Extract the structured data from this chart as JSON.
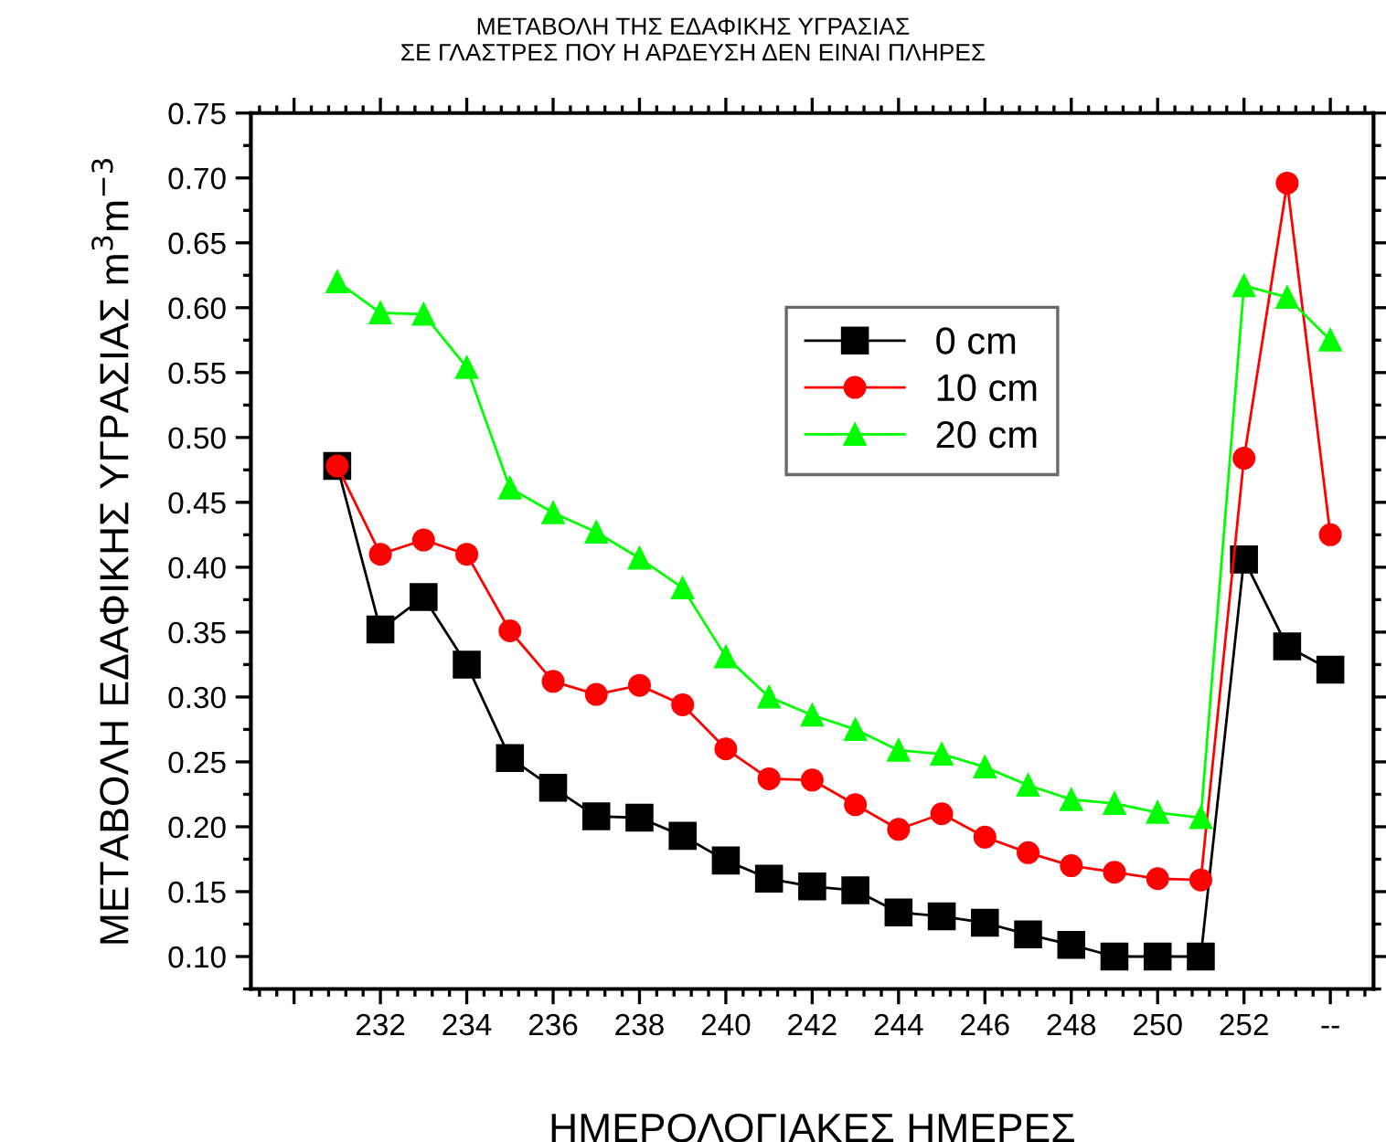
{
  "chart_data": {
    "type": "line",
    "title": "ΜΕΤΑΒΟΛΗ ΤΗΣ ΕΔΑΦΙΚΗΣ ΥΓΡΑΣΙΑΣ\nΣΕ ΓΛΑΣΤΡΕΣ ΠΟΥ Η ΑΡΔΕΥΣΗ ΔΕΝ ΕΙΝΑΙ ΠΛΗΡΕΣ",
    "xlabel": "ΗΜΕΡΟΛΟΓΙΑΚΕΣ ΗΜΕΡΕΣ",
    "ylabel": "ΜΕΤΑΒΟΛΗ ΕΔΑΦΙΚΗΣ ΥΓΡΑΣΙΑΣ m$^{3}$m$^{−3}$",
    "x": [
      231,
      232,
      233,
      234,
      235,
      236,
      237,
      238,
      239,
      240,
      241,
      242,
      243,
      244,
      245,
      246,
      247,
      248,
      249,
      250,
      251,
      252,
      253,
      254
    ],
    "series": [
      {
        "name": "0 cm",
        "color": "#000000",
        "marker": "square",
        "values": [
          0.478,
          0.352,
          0.377,
          0.325,
          0.253,
          0.23,
          0.208,
          0.207,
          0.193,
          0.174,
          0.16,
          0.154,
          0.151,
          0.134,
          0.131,
          0.126,
          0.117,
          0.109,
          0.1,
          0.1,
          0.1,
          0.406,
          0.339,
          0.321
        ]
      },
      {
        "name": "10 cm",
        "color": "#ff0000",
        "marker": "circle",
        "values": [
          0.478,
          0.41,
          0.421,
          0.41,
          0.351,
          0.312,
          0.302,
          0.309,
          0.294,
          0.26,
          0.237,
          0.236,
          0.217,
          0.198,
          0.21,
          0.192,
          0.18,
          0.17,
          0.165,
          0.16,
          0.159,
          0.484,
          0.696,
          0.425
        ]
      },
      {
        "name": "20 cm",
        "color": "#00ff00",
        "marker": "triangle",
        "values": [
          0.62,
          0.596,
          0.595,
          0.554,
          0.461,
          0.442,
          0.427,
          0.407,
          0.384,
          0.331,
          0.3,
          0.286,
          0.275,
          0.259,
          0.256,
          0.246,
          0.232,
          0.221,
          0.218,
          0.211,
          0.207,
          0.617,
          0.608,
          0.575
        ]
      }
    ],
    "xlim": [
      229,
      255
    ],
    "xticks": [
      {
        "value": 230,
        "label": null
      },
      232,
      234,
      236,
      238,
      240,
      242,
      244,
      246,
      248,
      250,
      252,
      {
        "value": 254,
        "label": "--"
      }
    ],
    "ylim": [
      0.075,
      0.75
    ],
    "yticks": [
      {
        "value": 0.1,
        "label": "0.10"
      },
      {
        "value": 0.15,
        "label": "0.15"
      },
      {
        "value": 0.2,
        "label": "0.20"
      },
      {
        "value": 0.25,
        "label": "0.25"
      },
      {
        "value": 0.3,
        "label": "0.30"
      },
      {
        "value": 0.35,
        "label": "0.35"
      },
      {
        "value": 0.4,
        "label": "0.40"
      },
      {
        "value": 0.45,
        "label": "0.45"
      },
      {
        "value": 0.5,
        "label": "0.50"
      },
      {
        "value": 0.55,
        "label": "0.55"
      },
      {
        "value": 0.6,
        "label": "0.60"
      },
      {
        "value": 0.65,
        "label": "0.65"
      },
      {
        "value": 0.7,
        "label": "0.70"
      },
      {
        "value": 0.75,
        "label": "0.75"
      }
    ],
    "grid": false,
    "legend": "top",
    "line_style": "solid"
  }
}
